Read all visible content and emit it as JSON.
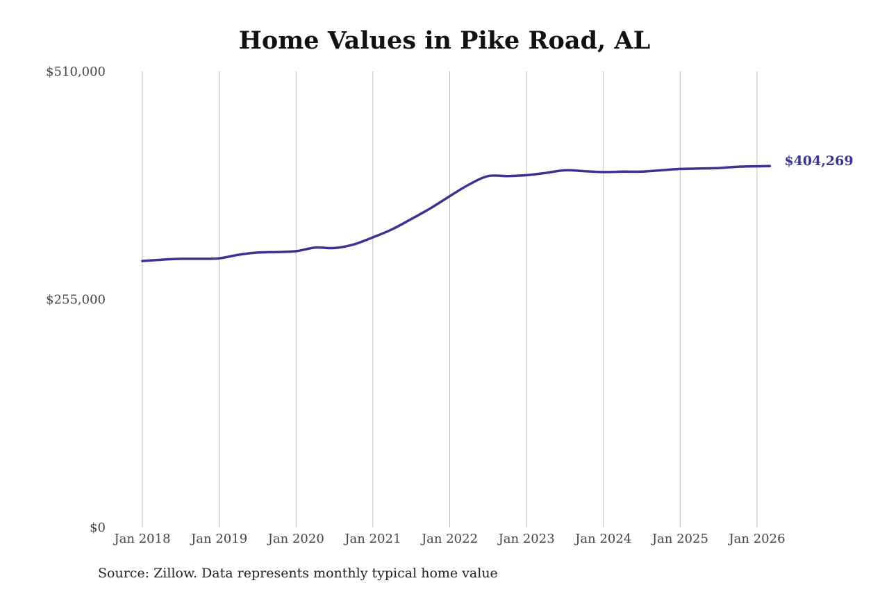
{
  "chart_data": {
    "type": "line",
    "title": "Home Values in Pike Road, AL",
    "xlabel": "",
    "ylabel": "",
    "ylim": [
      0,
      510000
    ],
    "y_ticks": [
      0,
      255000,
      510000
    ],
    "y_tick_labels": [
      "$0",
      "$255,000",
      "$510,000"
    ],
    "x_ticks": [
      "2018-01",
      "2019-01",
      "2020-01",
      "2021-01",
      "2022-01",
      "2023-01",
      "2024-01",
      "2025-01",
      "2026-01"
    ],
    "x_tick_labels": [
      "Jan 2018",
      "Jan 2019",
      "Jan 2020",
      "Jan 2021",
      "Jan 2022",
      "Jan 2023",
      "Jan 2024",
      "Jan 2025",
      "Jan 2026"
    ],
    "grid": "vertical",
    "line_color": "#3b3391",
    "series": [
      {
        "points": [
          [
            "2018-01",
            298000
          ],
          [
            "2018-04",
            299500
          ],
          [
            "2018-07",
            300500
          ],
          [
            "2018-10",
            300500
          ],
          [
            "2019-01",
            301000
          ],
          [
            "2019-04",
            305000
          ],
          [
            "2019-07",
            307500
          ],
          [
            "2019-10",
            308000
          ],
          [
            "2020-01",
            309000
          ],
          [
            "2020-04",
            313000
          ],
          [
            "2020-07",
            312500
          ],
          [
            "2020-10",
            316500
          ],
          [
            "2021-01",
            324500
          ],
          [
            "2021-04",
            333500
          ],
          [
            "2021-07",
            345000
          ],
          [
            "2021-10",
            357000
          ],
          [
            "2022-01",
            370500
          ],
          [
            "2022-04",
            383500
          ],
          [
            "2022-07",
            393000
          ],
          [
            "2022-10",
            393000
          ],
          [
            "2023-01",
            394000
          ],
          [
            "2023-04",
            396500
          ],
          [
            "2023-07",
            399500
          ],
          [
            "2023-10",
            398500
          ],
          [
            "2024-01",
            397500
          ],
          [
            "2024-04",
            398000
          ],
          [
            "2024-07",
            398000
          ],
          [
            "2024-10",
            399500
          ],
          [
            "2025-01",
            401000
          ],
          [
            "2025-04",
            401500
          ],
          [
            "2025-07",
            402000
          ],
          [
            "2025-10",
            403500
          ],
          [
            "2026-01",
            404000
          ],
          [
            "2026-03",
            404269
          ]
        ]
      }
    ],
    "end_label": "$404,269"
  },
  "source_note": "Source: Zillow. Data represents monthly typical home value"
}
